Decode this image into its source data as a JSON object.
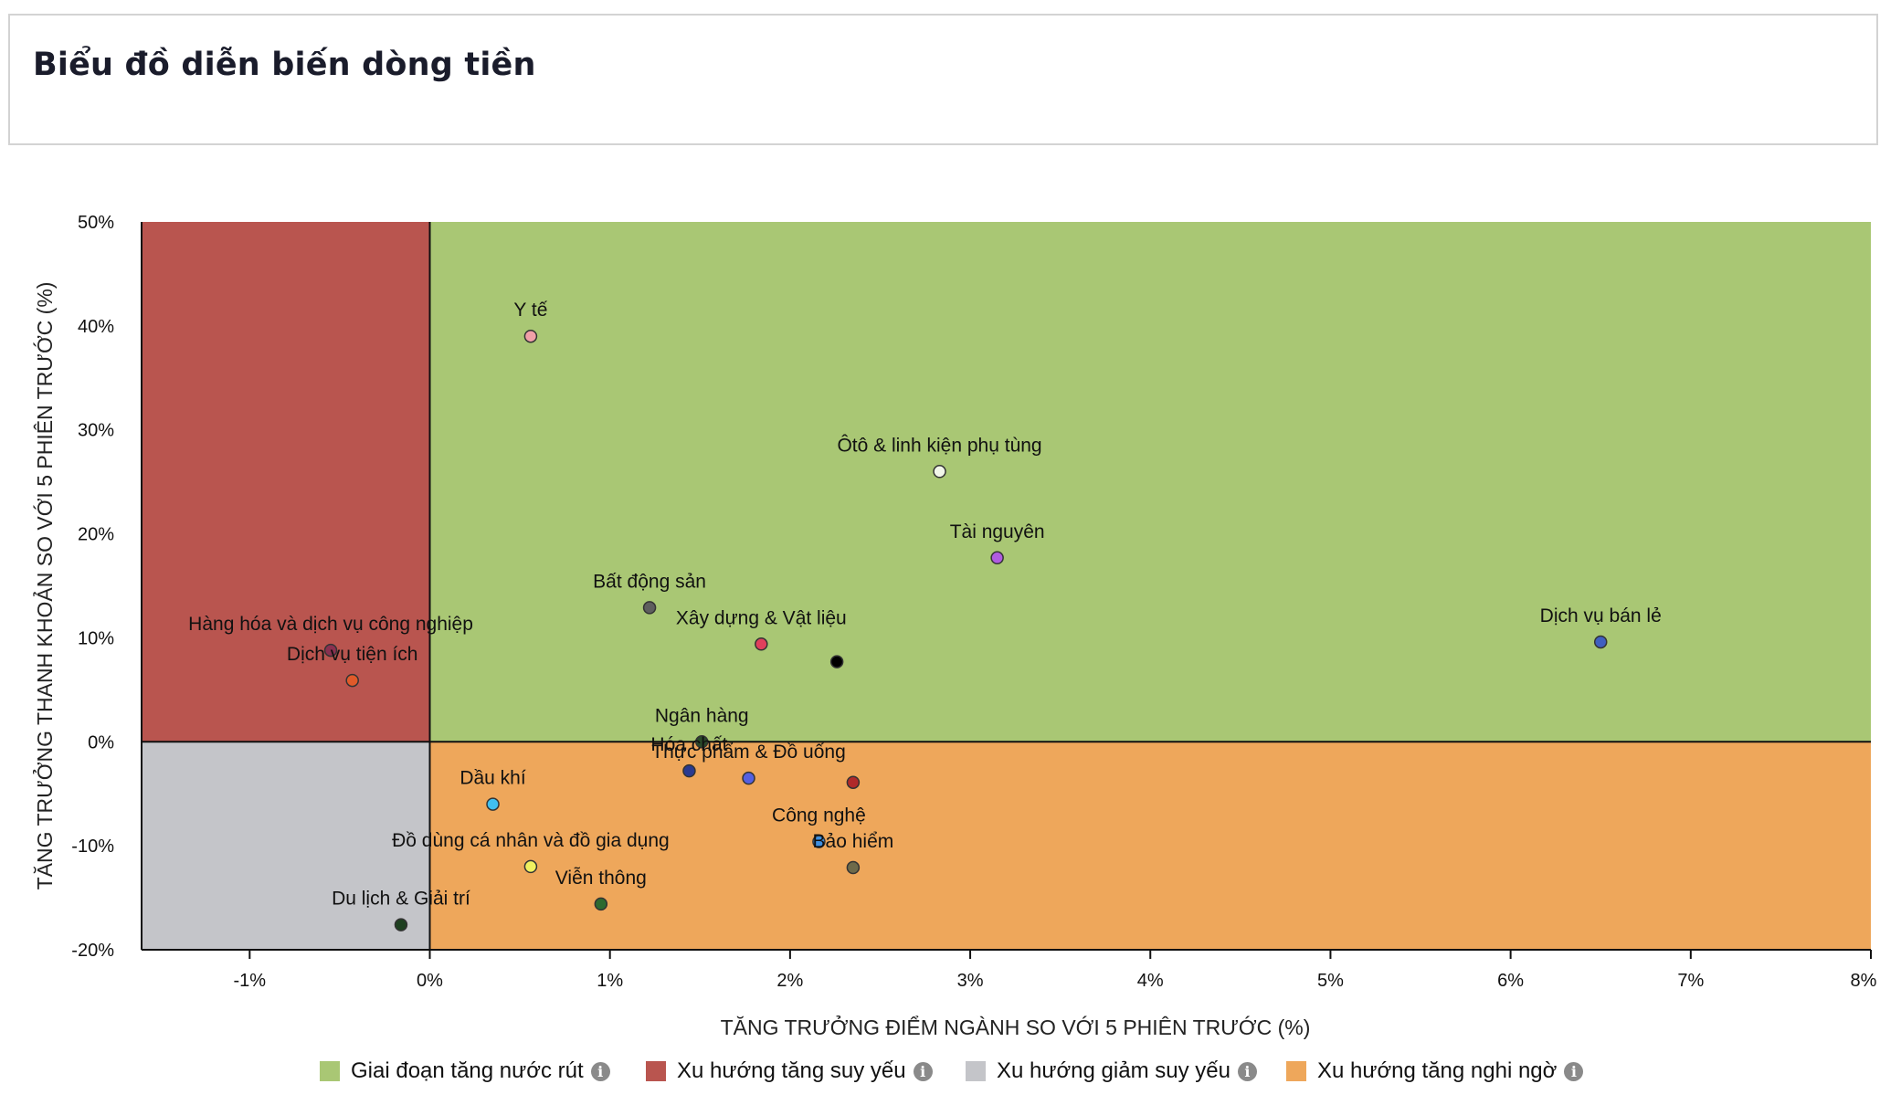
{
  "header": {
    "title": "Biểu đồ diễn biến dòng tiền"
  },
  "chart_data": {
    "type": "scatter",
    "xlabel": "TĂNG TRƯỞNG ĐIỂM NGÀNH SO VỚI 5 PHIÊN TRƯỚC (%)",
    "ylabel": "TĂNG TRƯỞNG THANH KHOẢN SO VỚI 5 PHIÊN TRƯỚC (%)",
    "xlim": [
      -1.6,
      8
    ],
    "ylim": [
      -20,
      50
    ],
    "xticks": [
      {
        "value": -1,
        "label": "-1%"
      },
      {
        "value": 0,
        "label": "0%"
      },
      {
        "value": 1,
        "label": "1%"
      },
      {
        "value": 2,
        "label": "2%"
      },
      {
        "value": 3,
        "label": "3%"
      },
      {
        "value": 4,
        "label": "4%"
      },
      {
        "value": 5,
        "label": "5%"
      },
      {
        "value": 6,
        "label": "6%"
      },
      {
        "value": 7,
        "label": "7%"
      },
      {
        "value": 8,
        "label": "8%"
      }
    ],
    "yticks": [
      {
        "value": 50,
        "label": "50%"
      },
      {
        "value": 40,
        "label": "40%"
      },
      {
        "value": 30,
        "label": "30%"
      },
      {
        "value": 20,
        "label": "20%"
      },
      {
        "value": 10,
        "label": "10%"
      },
      {
        "value": 0,
        "label": "0%"
      },
      {
        "value": -10,
        "label": "-10%"
      },
      {
        "value": -20,
        "label": "-20%"
      }
    ],
    "quadrants": [
      {
        "name": "Giai đoạn tăng nước rút",
        "color": "#a9c774",
        "x": [
          0,
          8
        ],
        "y": [
          0,
          50
        ]
      },
      {
        "name": "Xu hướng tăng suy yếu",
        "color": "#b9554f",
        "x": [
          -1.6,
          0
        ],
        "y": [
          0,
          50
        ]
      },
      {
        "name": "Xu hướng giảm suy yếu",
        "color": "#c4c5c9",
        "x": [
          -1.6,
          0
        ],
        "y": [
          -20,
          0
        ]
      },
      {
        "name": "Xu hướng tăng nghi ngờ",
        "color": "#eea75b",
        "x": [
          0,
          8
        ],
        "y": [
          -20,
          0
        ]
      }
    ],
    "points": [
      {
        "label": "Y tế",
        "x": 0.56,
        "y": 39,
        "color": "#f0a0a8"
      },
      {
        "label": "Ôtô & linh kiện phụ tùng",
        "x": 2.83,
        "y": 26,
        "color": "#f1f6e9"
      },
      {
        "label": "Tài nguyên",
        "x": 3.15,
        "y": 17.7,
        "color": "#b05ce0"
      },
      {
        "label": "Bất động sản",
        "x": 1.22,
        "y": 12.9,
        "color": "#5e5e5e"
      },
      {
        "label": "Xây dựng & Vật liệu",
        "x": 1.84,
        "y": 9.4,
        "color": "#e0405c"
      },
      {
        "label": "",
        "x": 2.26,
        "y": 7.7,
        "color": "#000000"
      },
      {
        "label": "Dịch vụ bán lẻ",
        "x": 6.5,
        "y": 9.6,
        "color": "#3f5fc0"
      },
      {
        "label": "Hàng hóa và dịch vụ công nghiệp",
        "x": -0.55,
        "y": 8.8,
        "color": "#8a3050"
      },
      {
        "label": "Dịch vụ tiện ích",
        "x": -0.43,
        "y": 5.9,
        "color": "#e05a2a"
      },
      {
        "label": "Ngân hàng",
        "x": 1.51,
        "y": 0,
        "color": "#2a4a2a"
      },
      {
        "label": "Hóa chất",
        "x": 1.44,
        "y": -2.8,
        "color": "#2a3a90"
      },
      {
        "label": "Thực phẩm & Đồ uống",
        "x": 1.77,
        "y": -3.5,
        "color": "#5560e0"
      },
      {
        "label": "",
        "x": 2.35,
        "y": -3.9,
        "color": "#b02a2a"
      },
      {
        "label": "Dầu khí",
        "x": 0.35,
        "y": -6,
        "color": "#40c0f0"
      },
      {
        "label": "Công nghệ",
        "x": 2.16,
        "y": -9.6,
        "color": "#4090e0"
      },
      {
        "label": "Bảo hiểm",
        "x": 2.35,
        "y": -12.1,
        "color": "#6e6a4a"
      },
      {
        "label": "Đồ dùng cá nhân và đồ gia dụng",
        "x": 0.56,
        "y": -12,
        "color": "#f0f060"
      },
      {
        "label": "Viễn thông",
        "x": 0.95,
        "y": -15.6,
        "color": "#2e6a30"
      },
      {
        "label": "Du lịch & Giải trí",
        "x": -0.16,
        "y": -17.6,
        "color": "#1e4020"
      }
    ]
  },
  "legend": {
    "items": [
      {
        "label": "Giai đoạn tăng nước rút",
        "color": "#a9c774",
        "icon": "info-icon"
      },
      {
        "label": "Xu hướng tăng suy yếu",
        "color": "#b9554f",
        "icon": "info-icon"
      },
      {
        "label": "Xu hướng giảm suy yếu",
        "color": "#c4c5c9",
        "icon": "info-icon"
      },
      {
        "label": "Xu hướng tăng nghi ngờ",
        "color": "#eea75b",
        "icon": "info-icon"
      }
    ],
    "info_glyph": "i"
  }
}
